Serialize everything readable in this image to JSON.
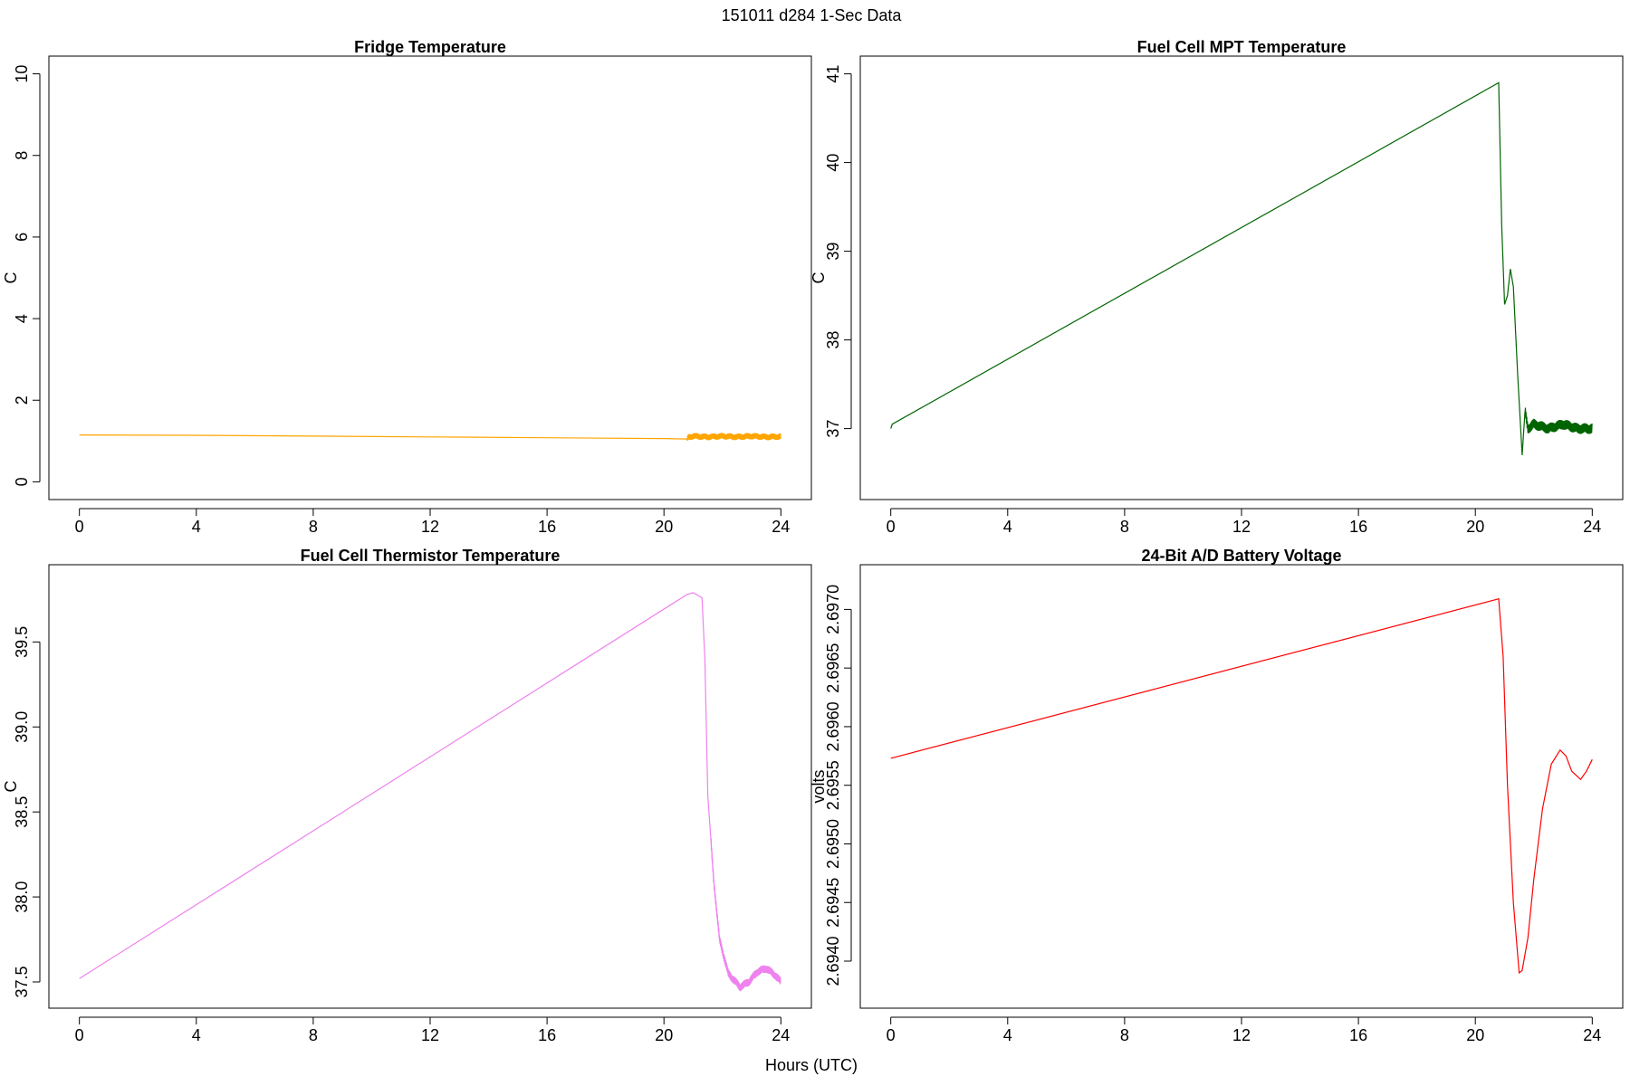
{
  "figure": {
    "suptitle": "151011   d284   1-Sec Data",
    "xlabel": "Hours (UTC)"
  },
  "chart_data": [
    {
      "type": "line",
      "title": "Fridge Temperature",
      "ylabel": "C",
      "xlabel": "",
      "color": "#FFA500",
      "xlim": [
        0,
        24
      ],
      "ylim": [
        0,
        10
      ],
      "xticks": [
        0,
        4,
        8,
        12,
        16,
        20,
        24
      ],
      "yticks": [
        0,
        2,
        4,
        6,
        8,
        10
      ],
      "ytick_labels": [
        "0",
        "2",
        "4",
        "6",
        "8",
        "10"
      ],
      "series": [
        {
          "name": "Fridge Temperature",
          "x": [
            0,
            4,
            8,
            12,
            16,
            20,
            20.8,
            20.85,
            21,
            21.5,
            22,
            22.5,
            23,
            23.5,
            24
          ],
          "y": [
            1.15,
            1.14,
            1.12,
            1.1,
            1.08,
            1.06,
            1.05,
            1.1,
            1.12,
            1.1,
            1.12,
            1.1,
            1.12,
            1.1,
            1.11
          ]
        }
      ],
      "noise_band": {
        "from_x": 20.8,
        "to_x": 24,
        "amplitude": 0.08
      }
    },
    {
      "type": "line",
      "title": "Fuel Cell MPT Temperature",
      "ylabel": "C",
      "xlabel": "",
      "color": "#006400",
      "xlim": [
        0,
        24
      ],
      "ylim": [
        36.4,
        41.0
      ],
      "xticks": [
        0,
        4,
        8,
        12,
        16,
        20,
        24
      ],
      "yticks": [
        37,
        38,
        39,
        40,
        41
      ],
      "ytick_labels": [
        "37",
        "38",
        "39",
        "40",
        "41"
      ],
      "series": [
        {
          "name": "Fuel Cell MPT Temperature",
          "x": [
            0,
            0.05,
            20.8,
            20.9,
            21.0,
            21.1,
            21.2,
            21.3,
            21.45,
            21.6,
            21.7,
            21.8,
            22.0,
            22.5,
            23.0,
            23.5,
            24
          ],
          "y": [
            37.0,
            37.05,
            40.9,
            39.3,
            38.4,
            38.5,
            38.8,
            38.6,
            37.6,
            36.7,
            37.2,
            37.0,
            37.05,
            37.0,
            37.05,
            37.0,
            37.0
          ]
        }
      ],
      "noise_band": {
        "from_x": 21.7,
        "to_x": 24,
        "amplitude": 0.06
      }
    },
    {
      "type": "line",
      "title": "Fuel Cell Thermistor Temperature",
      "ylabel": "C",
      "xlabel": "",
      "color": "#EE82EE",
      "xlim": [
        0,
        24
      ],
      "ylim": [
        37.45,
        39.85
      ],
      "xticks": [
        0,
        4,
        8,
        12,
        16,
        20,
        24
      ],
      "yticks": [
        37.5,
        38.0,
        38.5,
        39.0,
        39.5
      ],
      "ytick_labels": [
        "37.5",
        "38.0",
        "38.5",
        "39.0",
        "39.5"
      ],
      "series": [
        {
          "name": "Fuel Cell Thermistor Temperature",
          "x": [
            0,
            20.8,
            21.0,
            21.3,
            21.4,
            21.5,
            21.7,
            21.9,
            22.2,
            22.6,
            22.9,
            23.2,
            23.5,
            23.8,
            24
          ],
          "y": [
            37.52,
            39.78,
            39.79,
            39.76,
            39.4,
            38.6,
            38.1,
            37.75,
            37.55,
            37.47,
            37.5,
            37.56,
            37.58,
            37.54,
            37.5
          ]
        }
      ],
      "noise_band": {
        "from_x": 21.6,
        "to_x": 24,
        "amplitude": 0.025
      }
    },
    {
      "type": "line",
      "title": "24-Bit A/D Battery Voltage",
      "ylabel": "volts",
      "xlabel": "",
      "color": "#FF0000",
      "xlim": [
        0,
        24
      ],
      "ylim": [
        2.69375,
        2.69723
      ],
      "xticks": [
        0,
        4,
        8,
        12,
        16,
        20,
        24
      ],
      "yticks": [
        2.694,
        2.6945,
        2.695,
        2.6955,
        2.696,
        2.6965,
        2.697
      ],
      "ytick_labels": [
        "2.6940",
        "2.6945",
        "2.6950",
        "2.6955",
        "2.6960",
        "2.6965",
        "2.6970"
      ],
      "series": [
        {
          "name": "24-Bit A/D Battery Voltage",
          "x": [
            0,
            20.8,
            20.95,
            21.1,
            21.3,
            21.5,
            21.6,
            21.8,
            22.0,
            22.3,
            22.6,
            22.9,
            23.1,
            23.3,
            23.6,
            23.8,
            24
          ],
          "y": [
            2.69573,
            2.69709,
            2.6966,
            2.6955,
            2.6945,
            2.6939,
            2.69392,
            2.6942,
            2.6947,
            2.6953,
            2.69568,
            2.6958,
            2.69575,
            2.69562,
            2.69555,
            2.69562,
            2.69572
          ]
        }
      ],
      "noise_band": null
    }
  ]
}
